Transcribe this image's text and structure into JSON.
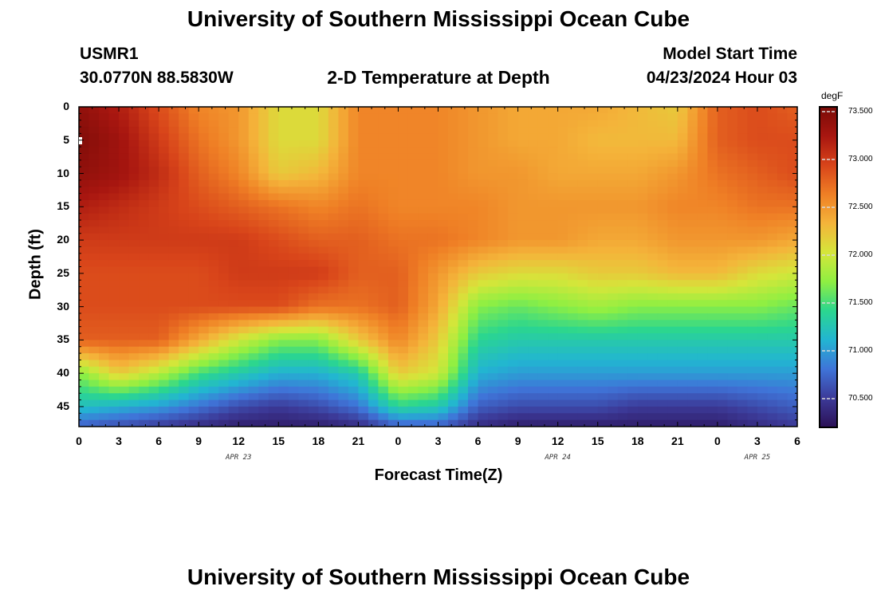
{
  "header": {
    "title": "University of Southern Mississippi Ocean Cube",
    "station_id": "USMR1",
    "coordinates": "30.0770N  88.5830W",
    "plot_title": "2-D Temperature at Depth",
    "model_start_label": "Model Start Time",
    "model_start_value": "04/23/2024 Hour 03"
  },
  "footer": {
    "title": "University of Southern Mississippi Ocean Cube"
  },
  "chart_data": {
    "type": "heatmap",
    "title": "2-D Temperature at Depth",
    "xlabel": "Forecast Time(Z)",
    "ylabel": "Depth (ft)",
    "x_ticks": [
      "0",
      "3",
      "6",
      "9",
      "12",
      "15",
      "18",
      "21",
      "0",
      "3",
      "6",
      "9",
      "12",
      "15",
      "18",
      "21",
      "0",
      "3",
      "6"
    ],
    "x_range_hours": [
      0,
      54
    ],
    "date_labels": [
      {
        "label": "APR 23",
        "hour": 12
      },
      {
        "label": "APR 24",
        "hour": 36
      },
      {
        "label": "APR 25",
        "hour": 51
      }
    ],
    "y_ticks": [
      "0",
      "5",
      "10",
      "15",
      "20",
      "25",
      "30",
      "35",
      "40",
      "45"
    ],
    "y_range": [
      0,
      48
    ],
    "colorbar": {
      "unit": "degF",
      "min": 70.2,
      "max": 73.55,
      "labels": [
        "73.500",
        "73.000",
        "72.500",
        "72.000",
        "71.500",
        "71.000",
        "70.500"
      ],
      "colors": [
        "#2b1055",
        "#3c3a98",
        "#3f74d8",
        "#22b5d2",
        "#2bd68f",
        "#8fef42",
        "#d5e63a",
        "#f4b43a",
        "#ef7f25",
        "#d8441a",
        "#a81610",
        "#7a0b07"
      ]
    },
    "depths_ft": [
      0,
      5,
      10,
      15,
      20,
      25,
      30,
      35,
      40,
      45,
      48
    ],
    "hours": [
      0,
      3,
      6,
      9,
      12,
      15,
      18,
      21,
      24,
      27,
      30,
      33,
      36,
      39,
      42,
      45,
      48,
      51,
      54
    ],
    "temperature_degF": [
      [
        73.4,
        73.2,
        72.9,
        72.6,
        72.5,
        72.1,
        72.1,
        72.6,
        72.6,
        72.6,
        72.5,
        72.4,
        72.4,
        72.4,
        72.3,
        72.2,
        72.8,
        72.9,
        72.8
      ],
      [
        73.5,
        73.3,
        73.0,
        72.7,
        72.5,
        72.1,
        72.1,
        72.6,
        72.6,
        72.6,
        72.5,
        72.4,
        72.4,
        72.3,
        72.3,
        72.3,
        72.8,
        72.9,
        72.9
      ],
      [
        73.4,
        73.3,
        73.1,
        72.8,
        72.6,
        72.2,
        72.3,
        72.6,
        72.6,
        72.6,
        72.5,
        72.5,
        72.4,
        72.4,
        72.4,
        72.5,
        72.7,
        72.8,
        72.9
      ],
      [
        73.2,
        73.1,
        73.0,
        72.9,
        72.8,
        72.7,
        72.6,
        72.7,
        72.6,
        72.6,
        72.6,
        72.5,
        72.5,
        72.5,
        72.5,
        72.6,
        72.6,
        72.7,
        72.7
      ],
      [
        73.0,
        73.0,
        73.0,
        73.0,
        73.0,
        72.9,
        72.8,
        72.8,
        72.7,
        72.7,
        72.6,
        72.5,
        72.5,
        72.4,
        72.4,
        72.5,
        72.5,
        72.5,
        72.4
      ],
      [
        72.9,
        72.9,
        72.9,
        72.9,
        73.0,
        73.0,
        73.0,
        72.8,
        72.8,
        72.5,
        72.2,
        72.1,
        72.1,
        72.2,
        72.2,
        72.3,
        72.3,
        72.1,
        72.0
      ],
      [
        72.9,
        72.9,
        72.9,
        72.9,
        72.9,
        72.9,
        72.7,
        72.7,
        72.8,
        72.4,
        71.7,
        71.6,
        71.7,
        71.8,
        71.7,
        71.7,
        71.7,
        71.7,
        71.6
      ],
      [
        72.8,
        72.8,
        72.8,
        72.4,
        72.0,
        71.7,
        71.7,
        72.2,
        72.6,
        72.2,
        71.4,
        71.3,
        71.3,
        71.3,
        71.3,
        71.3,
        71.3,
        71.3,
        71.3
      ],
      [
        71.7,
        72.2,
        71.9,
        71.5,
        71.3,
        71.1,
        71.1,
        71.3,
        72.2,
        72.0,
        71.1,
        71.0,
        71.0,
        71.0,
        71.0,
        71.0,
        71.0,
        71.0,
        71.0
      ],
      [
        71.2,
        71.1,
        71.0,
        70.8,
        70.6,
        70.5,
        70.6,
        70.8,
        71.4,
        71.3,
        70.7,
        70.6,
        70.6,
        70.6,
        70.5,
        70.5,
        70.5,
        70.6,
        70.7
      ],
      [
        70.7,
        70.6,
        70.5,
        70.4,
        70.3,
        70.3,
        70.3,
        70.4,
        70.7,
        70.7,
        70.4,
        70.3,
        70.3,
        70.3,
        70.3,
        70.3,
        70.3,
        70.4,
        70.5
      ]
    ]
  }
}
